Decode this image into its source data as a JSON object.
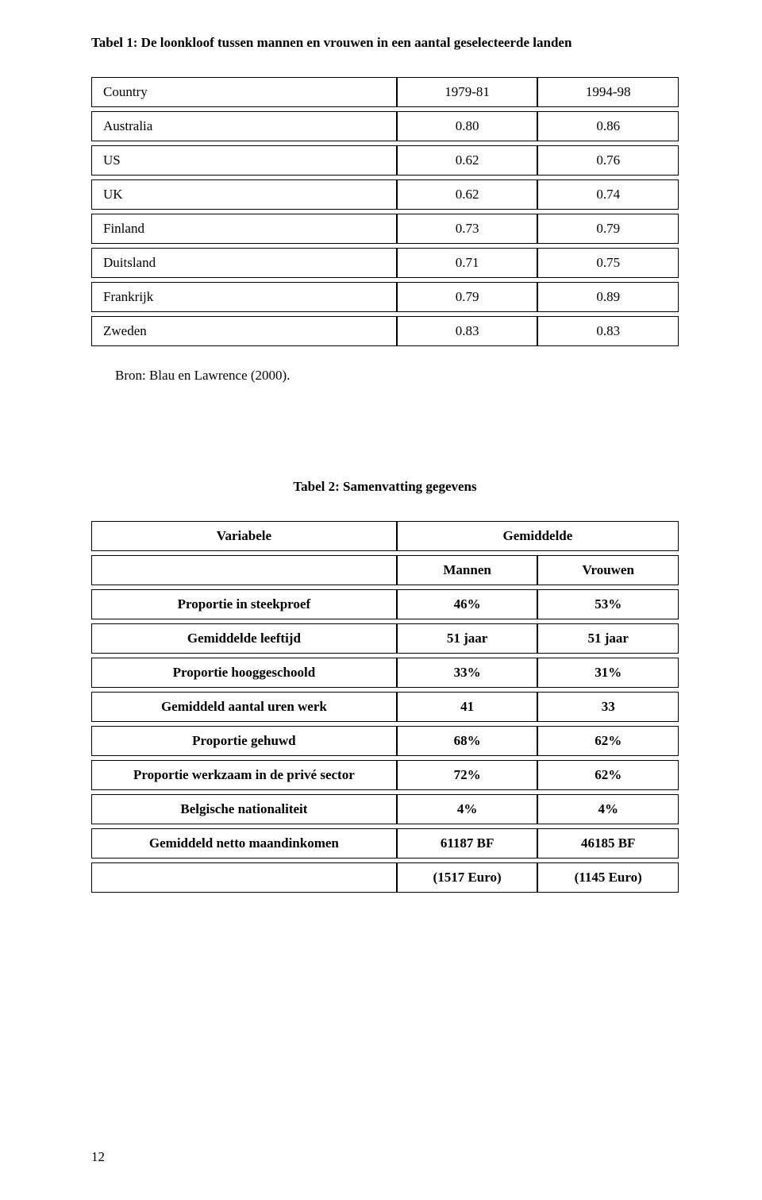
{
  "table1": {
    "title": "Tabel 1: De loonkloof tussen mannen en vrouwen in een aantal geselecteerde landen",
    "header": [
      "Country",
      "1979-81",
      "1994-98"
    ],
    "rows": [
      [
        "Australia",
        "0.80",
        "0.86"
      ],
      [
        "US",
        "0.62",
        "0.76"
      ],
      [
        "UK",
        "0.62",
        "0.74"
      ],
      [
        "Finland",
        "0.73",
        "0.79"
      ],
      [
        "Duitsland",
        "0.71",
        "0.75"
      ],
      [
        "Frankrijk",
        "0.79",
        "0.89"
      ],
      [
        "Zweden",
        "0.83",
        "0.83"
      ]
    ],
    "source": "Bron: Blau en Lawrence (2000)."
  },
  "table2": {
    "title": "Tabel 2: Samenvatting gegevens",
    "header_row1": [
      "Variabele",
      "Gemiddelde"
    ],
    "header_row2": [
      "Mannen",
      "Vrouwen"
    ],
    "rows": [
      [
        "Proportie in steekproef",
        "46%",
        "53%"
      ],
      [
        "Gemiddelde leeftijd",
        "51 jaar",
        "51 jaar"
      ],
      [
        "Proportie hooggeschoold",
        "33%",
        "31%"
      ],
      [
        "Gemiddeld aantal uren werk",
        "41",
        "33"
      ],
      [
        "Proportie gehuwd",
        "68%",
        "62%"
      ],
      [
        "Proportie werkzaam in de privé sector",
        "72%",
        "62%"
      ],
      [
        "Belgische nationaliteit",
        "4%",
        "4%"
      ],
      [
        "Gemiddeld netto maandinkomen",
        "61187 BF",
        "46185 BF"
      ],
      [
        "",
        "(1517 Euro)",
        "(1145 Euro)"
      ]
    ]
  },
  "page_number": "12"
}
